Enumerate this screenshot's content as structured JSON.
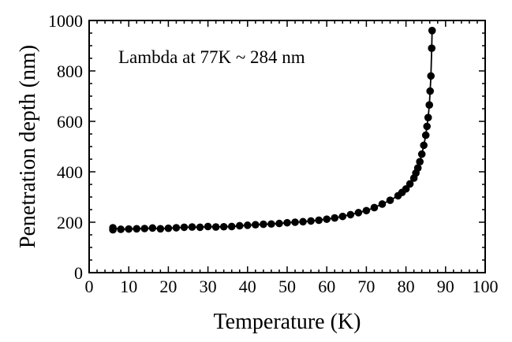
{
  "chart_data": {
    "type": "scatter",
    "title": "",
    "xlabel": "Temperature  (K)",
    "ylabel": "Penetration depth (nm)",
    "xlim": [
      0,
      100
    ],
    "ylim": [
      0,
      1000
    ],
    "x_ticks": [
      0,
      10,
      20,
      30,
      40,
      50,
      60,
      70,
      80,
      90,
      100
    ],
    "y_ticks": [
      0,
      200,
      400,
      600,
      800,
      1000
    ],
    "x_tick_labels": [
      "0",
      "10",
      "20",
      "30",
      "40",
      "50",
      "60",
      "70",
      "80",
      "90",
      "100"
    ],
    "y_tick_labels": [
      "0",
      "200",
      "400",
      "600",
      "800",
      "1000"
    ],
    "annotation": "Lambda at 77K ~ 284 nm",
    "grid": false,
    "legend": "none",
    "marker_color": "#000000",
    "line_color": "#000000",
    "series": [
      {
        "x": [
          6,
          6,
          8,
          10,
          12,
          14,
          16,
          18,
          20,
          22,
          24,
          26,
          28,
          30,
          32,
          34,
          36,
          38,
          40,
          42,
          44,
          46,
          48,
          50,
          52,
          54,
          56,
          58,
          60,
          62,
          64,
          66,
          68,
          70,
          72,
          74,
          76,
          78,
          79,
          80,
          81,
          82,
          82.5,
          83,
          83.5,
          84,
          84.5,
          85,
          85.3,
          85.6,
          85.9,
          86.1,
          86.3,
          86.5,
          86.6
        ],
        "y": [
          170,
          178,
          172,
          173,
          174,
          175,
          177,
          174,
          176,
          178,
          180,
          181,
          180,
          183,
          181,
          182,
          183,
          186,
          188,
          190,
          192,
          193,
          195,
          198,
          200,
          202,
          205,
          208,
          212,
          217,
          223,
          230,
          238,
          246,
          258,
          272,
          287,
          305,
          318,
          332,
          352,
          375,
          395,
          415,
          440,
          470,
          505,
          545,
          580,
          615,
          665,
          720,
          780,
          890,
          960
        ]
      }
    ]
  }
}
